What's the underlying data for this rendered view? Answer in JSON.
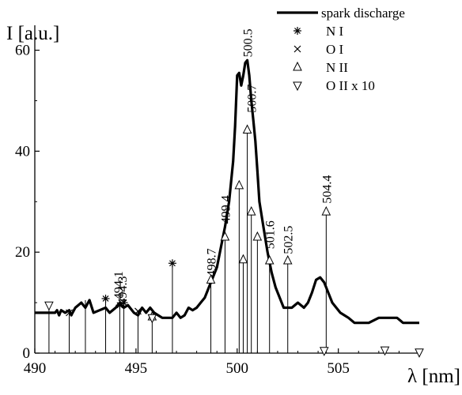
{
  "chart_data": {
    "type": "line",
    "xlabel": "λ [nm]",
    "ylabel": "I [a.u.]",
    "xlim": [
      490,
      509
    ],
    "ylim": [
      0,
      64
    ],
    "x_ticks": [
      "490",
      "495",
      "500",
      "505"
    ],
    "y_ticks": [
      "0",
      "20",
      "40",
      "60"
    ],
    "grid": false,
    "legend_position": "top-right",
    "legend": [
      {
        "label": "spark discharge",
        "symbol": "line"
      },
      {
        "label": "N I",
        "symbol": "asterisk"
      },
      {
        "label": "O I",
        "symbol": "cross"
      },
      {
        "label": "N II",
        "symbol": "triangle-up"
      },
      {
        "label": "O II x 10",
        "symbol": "triangle-down"
      }
    ],
    "series": [
      {
        "name": "spark discharge",
        "x": [
          490.0,
          491.0,
          491.1,
          491.2,
          491.3,
          491.5,
          491.7,
          491.8,
          492.0,
          492.3,
          492.5,
          492.7,
          492.9,
          493.2,
          493.5,
          493.7,
          494.0,
          494.2,
          494.4,
          494.6,
          494.9,
          495.1,
          495.3,
          495.5,
          495.7,
          495.9,
          496.1,
          496.3,
          496.8,
          497.0,
          497.2,
          497.4,
          497.6,
          497.8,
          498.0,
          498.2,
          498.4,
          498.6,
          498.8,
          499.0,
          499.2,
          499.4,
          499.6,
          499.8,
          499.9,
          500.0,
          500.1,
          500.2,
          500.3,
          500.4,
          500.5,
          500.6,
          500.7,
          500.8,
          500.9,
          501.0,
          501.1,
          501.3,
          501.5,
          501.7,
          501.9,
          502.1,
          502.3,
          502.5,
          502.7,
          503.0,
          503.3,
          503.5,
          503.7,
          503.9,
          504.1,
          504.3,
          504.5,
          504.7,
          504.9,
          505.1,
          505.3,
          505.5,
          505.8,
          506.0,
          506.3,
          506.5,
          507.0,
          507.5,
          507.9,
          508.2,
          509.0
        ],
        "y": [
          8,
          8,
          8.5,
          7.5,
          8.5,
          8,
          8.5,
          7.5,
          9,
          10,
          9,
          10.5,
          8,
          8.5,
          9,
          8,
          9,
          10,
          9,
          9.5,
          8,
          7.5,
          9,
          8,
          9,
          8,
          7.5,
          7,
          7,
          8,
          7,
          7.5,
          9,
          8.5,
          9,
          10,
          11,
          13,
          15,
          17,
          21,
          25,
          30,
          38,
          45,
          55,
          55.5,
          53,
          55,
          57.5,
          58,
          55,
          50,
          46,
          42,
          36,
          30,
          25,
          20,
          16,
          13,
          11,
          9,
          9,
          9,
          10,
          9,
          10,
          12,
          14.5,
          15,
          14,
          12,
          10,
          9,
          8,
          7.5,
          7,
          6,
          6,
          6,
          6,
          7,
          7,
          7,
          6,
          6
        ]
      },
      {
        "name": "N I",
        "x": [
          493.5,
          494.2,
          494.4,
          496.8
        ],
        "y": [
          10.8,
          9.5,
          10,
          17.8
        ]
      },
      {
        "name": "O I",
        "x": [
          491.7,
          495.1
        ],
        "y": [
          8,
          8.3
        ]
      },
      {
        "name": "N II",
        "x": [
          498.7,
          499.4,
          500.1,
          500.3,
          500.5,
          500.7,
          501.0,
          501.6,
          502.5,
          504.4,
          495.8
        ],
        "y": [
          14.5,
          23,
          33.2,
          18.5,
          44.2,
          28,
          23,
          18.3,
          18.3,
          28,
          7.2
        ]
      },
      {
        "name": "O II x 10",
        "x": [
          490.7,
          495.8,
          504.3,
          507.3,
          509.0
        ],
        "y": [
          9.5,
          7,
          0.5,
          0.6,
          0.2
        ]
      }
    ],
    "vertical_lines": [
      {
        "x": 490.7,
        "y": 9.5
      },
      {
        "x": 491.7,
        "y": 8
      },
      {
        "x": 492.5,
        "y": 10.5
      },
      {
        "x": 493.5,
        "y": 10.8
      },
      {
        "x": 494.2,
        "y": 9.5
      },
      {
        "x": 494.4,
        "y": 10
      },
      {
        "x": 495.1,
        "y": 8.3
      },
      {
        "x": 495.8,
        "y": 7.2
      },
      {
        "x": 496.8,
        "y": 17.8
      },
      {
        "x": 498.7,
        "y": 14.5
      },
      {
        "x": 499.4,
        "y": 23
      },
      {
        "x": 500.1,
        "y": 33.2
      },
      {
        "x": 500.3,
        "y": 18.5
      },
      {
        "x": 500.5,
        "y": 44.2
      },
      {
        "x": 500.7,
        "y": 28
      },
      {
        "x": 501.0,
        "y": 23
      },
      {
        "x": 501.6,
        "y": 18.3
      },
      {
        "x": 502.5,
        "y": 18.3
      },
      {
        "x": 504.4,
        "y": 28
      }
    ],
    "annotations": [
      {
        "text": "494.1",
        "x": 494.1,
        "y": 10
      },
      {
        "text": "494.3",
        "x": 494.3,
        "y": 9
      },
      {
        "text": "498.7",
        "x": 498.7,
        "y": 14.5
      },
      {
        "text": "499.4",
        "x": 499.4,
        "y": 25
      },
      {
        "text": "500.5",
        "x": 500.5,
        "y": 58
      },
      {
        "text": "500.7",
        "x": 500.7,
        "y": 47
      },
      {
        "text": "501.6",
        "x": 501.6,
        "y": 20
      },
      {
        "text": "502.5",
        "x": 502.5,
        "y": 19
      },
      {
        "text": "504.4",
        "x": 504.4,
        "y": 29
      }
    ]
  }
}
